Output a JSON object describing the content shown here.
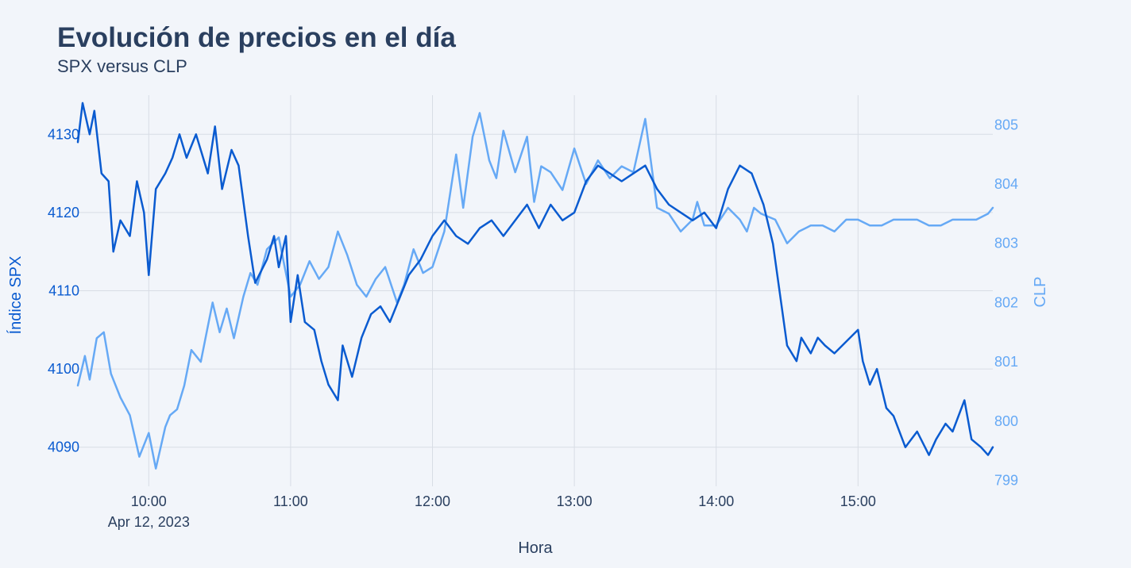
{
  "title": "Evolución de precios en el día",
  "subtitle": "SPX versus CLP",
  "colors": {
    "spx": "#0a5bd0",
    "clp": "#66a9f5",
    "text": "#2a3f5f",
    "grid": "#d8dde5",
    "background": "#f2f5fa"
  },
  "chart_data": {
    "type": "line",
    "title": "Evolución de precios en el día",
    "subtitle": "SPX versus CLP",
    "xlabel": "Hora",
    "ylabel": "Índice SPX",
    "y2label": "CLP",
    "date_label": "Apr 12, 2023",
    "x_ticks": [
      "10:00",
      "11:00",
      "12:00",
      "13:00",
      "14:00",
      "15:00"
    ],
    "y_ticks": [
      4090,
      4100,
      4110,
      4120,
      4130
    ],
    "y2_ticks": [
      799,
      800,
      801,
      802,
      803,
      804,
      805
    ],
    "xlim": [
      "09:30",
      "15:57"
    ],
    "ylim": [
      4085,
      4135
    ],
    "y2lim": [
      798.9,
      805.5
    ],
    "grid": true,
    "series": [
      {
        "name": "SPX",
        "axis": "y",
        "x": [
          "09:30",
          "09:32",
          "09:35",
          "09:37",
          "09:40",
          "09:43",
          "09:45",
          "09:48",
          "09:52",
          "09:55",
          "09:58",
          "10:00",
          "10:03",
          "10:07",
          "10:10",
          "10:13",
          "10:16",
          "10:20",
          "10:25",
          "10:28",
          "10:31",
          "10:35",
          "10:38",
          "10:42",
          "10:45",
          "10:50",
          "10:53",
          "10:55",
          "10:58",
          "11:00",
          "11:03",
          "11:06",
          "11:10",
          "11:13",
          "11:16",
          "11:20",
          "11:22",
          "11:26",
          "11:30",
          "11:34",
          "11:38",
          "11:42",
          "11:46",
          "11:50",
          "11:55",
          "12:00",
          "12:05",
          "12:10",
          "12:15",
          "12:20",
          "12:25",
          "12:30",
          "12:35",
          "12:40",
          "12:45",
          "12:50",
          "12:55",
          "13:00",
          "13:05",
          "13:10",
          "13:15",
          "13:20",
          "13:25",
          "13:30",
          "13:35",
          "13:40",
          "13:45",
          "13:50",
          "13:55",
          "14:00",
          "14:05",
          "14:10",
          "14:15",
          "14:20",
          "14:24",
          "14:30",
          "14:34",
          "14:36",
          "14:40",
          "14:43",
          "14:46",
          "14:50",
          "15:00",
          "15:02",
          "15:05",
          "15:08",
          "15:12",
          "15:15",
          "15:20",
          "15:25",
          "15:30",
          "15:33",
          "15:37",
          "15:40",
          "15:45",
          "15:48",
          "15:52",
          "15:55",
          "15:57"
        ],
        "values": [
          4129,
          4134,
          4130,
          4133,
          4125,
          4124,
          4115,
          4119,
          4117,
          4124,
          4120,
          4112,
          4123,
          4125,
          4127,
          4130,
          4127,
          4130,
          4125,
          4131,
          4123,
          4128,
          4126,
          4117,
          4111,
          4114,
          4117,
          4113,
          4117,
          4106,
          4112,
          4106,
          4105,
          4101,
          4098,
          4096,
          4103,
          4099,
          4104,
          4107,
          4108,
          4106,
          4109,
          4112,
          4114,
          4117,
          4119,
          4117,
          4116,
          4118,
          4119,
          4117,
          4119,
          4121,
          4118,
          4121,
          4119,
          4120,
          4124,
          4126,
          4125,
          4124,
          4125,
          4126,
          4123,
          4121,
          4120,
          4119,
          4120,
          4118,
          4123,
          4126,
          4125,
          4121,
          4116,
          4103,
          4101,
          4104,
          4102,
          4104,
          4103,
          4102,
          4105,
          4101,
          4098,
          4100,
          4095,
          4094,
          4090,
          4092,
          4089,
          4091,
          4093,
          4092,
          4096,
          4091,
          4090,
          4089,
          4090
        ]
      },
      {
        "name": "CLP",
        "axis": "y2",
        "x": [
          "09:30",
          "09:33",
          "09:35",
          "09:38",
          "09:41",
          "09:44",
          "09:48",
          "09:52",
          "09:56",
          "10:00",
          "10:03",
          "10:07",
          "10:09",
          "10:12",
          "10:15",
          "10:18",
          "10:22",
          "10:25",
          "10:27",
          "10:30",
          "10:33",
          "10:36",
          "10:40",
          "10:43",
          "10:46",
          "10:50",
          "10:55",
          "11:00",
          "11:04",
          "11:08",
          "11:12",
          "11:16",
          "11:20",
          "11:24",
          "11:28",
          "11:32",
          "11:36",
          "11:40",
          "11:45",
          "11:48",
          "11:52",
          "11:56",
          "12:00",
          "12:05",
          "12:10",
          "12:13",
          "12:17",
          "12:20",
          "12:24",
          "12:27",
          "12:30",
          "12:35",
          "12:40",
          "12:43",
          "12:46",
          "12:50",
          "12:55",
          "13:00",
          "13:05",
          "13:10",
          "13:15",
          "13:20",
          "13:25",
          "13:30",
          "13:35",
          "13:40",
          "13:45",
          "13:50",
          "13:52",
          "13:55",
          "14:00",
          "14:05",
          "14:10",
          "14:13",
          "14:16",
          "14:19",
          "14:25",
          "14:30",
          "14:35",
          "14:40",
          "14:45",
          "14:50",
          "14:55",
          "15:00",
          "15:05",
          "15:10",
          "15:15",
          "15:20",
          "15:25",
          "15:30",
          "15:35",
          "15:40",
          "15:45",
          "15:50",
          "15:55",
          "15:57"
        ],
        "values": [
          800.6,
          801.1,
          800.7,
          801.4,
          801.5,
          800.8,
          800.4,
          800.1,
          799.4,
          799.8,
          799.2,
          799.9,
          800.1,
          800.2,
          800.6,
          801.2,
          801.0,
          801.6,
          802.0,
          801.5,
          801.9,
          801.4,
          802.1,
          802.5,
          802.3,
          802.9,
          803.1,
          802.1,
          802.3,
          802.7,
          802.4,
          802.6,
          803.2,
          802.8,
          802.3,
          802.1,
          802.4,
          802.6,
          802.0,
          802.3,
          802.9,
          802.5,
          802.6,
          803.2,
          804.5,
          803.6,
          804.8,
          805.2,
          804.4,
          804.1,
          804.9,
          804.2,
          804.8,
          803.7,
          804.3,
          804.2,
          803.9,
          804.6,
          804.0,
          804.4,
          804.1,
          804.3,
          804.2,
          805.1,
          803.6,
          803.5,
          803.2,
          803.4,
          803.7,
          803.3,
          803.3,
          803.6,
          803.4,
          803.2,
          803.6,
          803.5,
          803.4,
          803.0,
          803.2,
          803.3,
          803.3,
          803.2,
          803.4,
          803.4,
          803.3,
          803.3,
          803.4,
          803.4,
          803.4,
          803.3,
          803.3,
          803.4,
          803.4,
          803.4,
          803.5,
          803.6
        ]
      }
    ]
  }
}
